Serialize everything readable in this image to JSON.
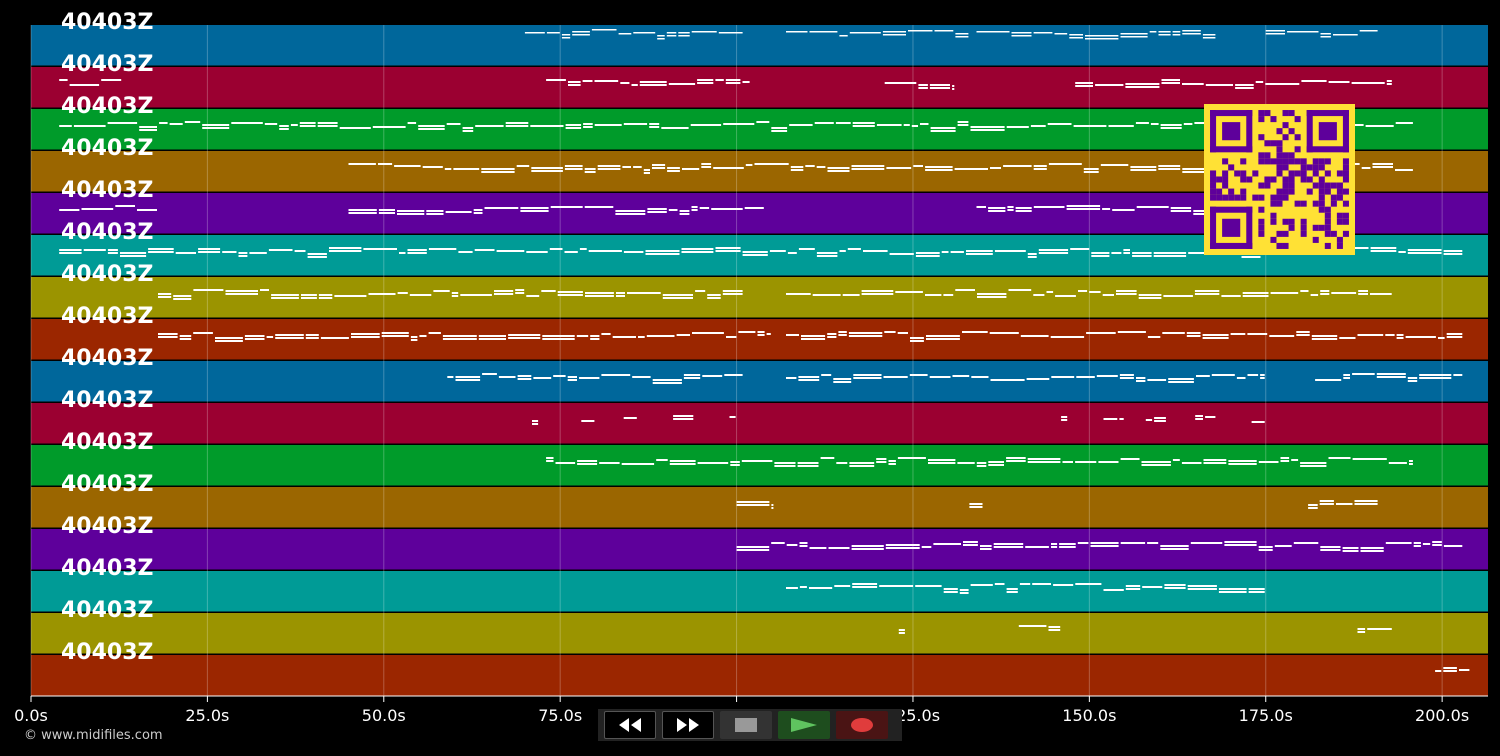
{
  "tracks": [
    {
      "label": "40403Z",
      "color": "#00679b"
    },
    {
      "label": "40403Z",
      "color": "#9b0031"
    },
    {
      "label": "40403Z",
      "color": "#009b2a"
    },
    {
      "label": "40403Z",
      "color": "#9b6600"
    },
    {
      "label": "40403Z",
      "color": "#5e009b"
    },
    {
      "label": "40403Z",
      "color": "#009b96"
    },
    {
      "label": "40403Z",
      "color": "#9b9400"
    },
    {
      "label": "40403Z",
      "color": "#9b2600"
    },
    {
      "label": "40403Z",
      "color": "#00679b"
    },
    {
      "label": "40403Z",
      "color": "#9b0031"
    },
    {
      "label": "40403Z",
      "color": "#009b2a"
    },
    {
      "label": "40403Z",
      "color": "#9b6600"
    },
    {
      "label": "40403Z",
      "color": "#5e009b"
    },
    {
      "label": "40403Z",
      "color": "#009b96"
    },
    {
      "label": "40403Z",
      "color": "#9b9400"
    },
    {
      "label": "40403Z",
      "color": "#9b2600"
    }
  ],
  "timeline": {
    "ticks": [
      "0.0s",
      "25.0s",
      "50.0s",
      "75.0s",
      "100.0s",
      "125.0s",
      "150.0s",
      "175.0s",
      "200.0s"
    ],
    "max_seconds": 206.5
  },
  "notes": [
    [
      [
        70,
        101
      ],
      [
        107,
        133
      ],
      [
        134,
        162
      ],
      [
        162,
        168
      ],
      [
        175,
        191
      ]
    ],
    [
      [
        4,
        13
      ],
      [
        73,
        102
      ],
      [
        121,
        131
      ],
      [
        148,
        193
      ]
    ],
    [
      [
        4,
        196
      ]
    ],
    [
      [
        45,
        196
      ]
    ],
    [
      [
        4,
        18
      ],
      [
        45,
        104
      ],
      [
        134,
        180
      ]
    ],
    [
      [
        4,
        203
      ]
    ],
    [
      [
        18,
        101
      ],
      [
        107,
        193
      ]
    ],
    [
      [
        18,
        105
      ],
      [
        107,
        203
      ]
    ],
    [
      [
        59,
        101
      ],
      [
        107,
        175
      ],
      [
        182,
        203
      ]
    ],
    [
      [
        71,
        72
      ],
      [
        78,
        80
      ],
      [
        84,
        86
      ],
      [
        91,
        94
      ],
      [
        99,
        100
      ],
      [
        146,
        147
      ],
      [
        152,
        155
      ],
      [
        158,
        161
      ],
      [
        165,
        168
      ],
      [
        173,
        175
      ]
    ],
    [
      [
        73,
        196
      ]
    ],
    [
      [
        100,
        105
      ],
      [
        133,
        135
      ],
      [
        181,
        191
      ]
    ],
    [
      [
        100,
        203
      ]
    ],
    [
      [
        107,
        175
      ]
    ],
    [
      [
        123,
        124
      ],
      [
        140,
        146
      ],
      [
        188,
        193
      ]
    ],
    [
      [
        199,
        204
      ]
    ]
  ],
  "footer": {
    "copyright": "© www.midifiles.com"
  },
  "controls": {
    "rewind": "rewind-icon",
    "fast_forward": "fast-forward-icon",
    "stop": "stop-icon",
    "play": "play-icon",
    "record": "record-icon"
  },
  "colors": {
    "background": "#000000",
    "note": "#ffffff",
    "qr_bg": "#ffe135",
    "qr_fg": "#5e009b"
  }
}
